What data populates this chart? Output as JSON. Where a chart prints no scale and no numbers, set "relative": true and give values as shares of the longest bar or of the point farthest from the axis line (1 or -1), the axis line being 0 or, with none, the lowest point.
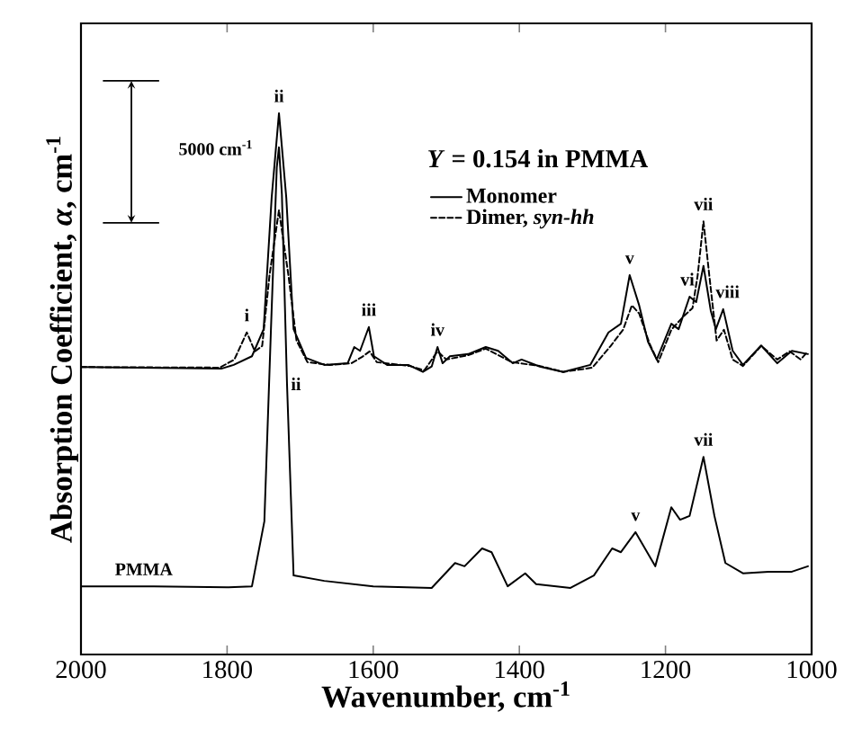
{
  "chart_data": {
    "type": "line",
    "relative": true,
    "xlabel": "Wavenumber, cm$^{-1}$",
    "ylabel": "Absorption Coefficient, *α*, cm$^{-1}$",
    "xlim": [
      2000,
      1000
    ],
    "xticks": [
      2000,
      1800,
      1600,
      1400,
      1200,
      1000
    ],
    "legend": "top right",
    "marker": "none",
    "grid": false,
    "series": [
      {
        "name": "Monomer",
        "color": "#000000",
        "line_style": "solid",
        "x": [
          2000,
          1808,
          1791,
          1766,
          1750,
          1739,
          1729,
          1719,
          1709,
          1692,
          1667,
          1635,
          1626,
          1618,
          1606,
          1599,
          1581,
          1552,
          1532,
          1520,
          1512,
          1505,
          1495,
          1470,
          1446,
          1429,
          1409,
          1397,
          1372,
          1340,
          1303,
          1278,
          1261,
          1249,
          1236,
          1224,
          1212,
          1192,
          1182,
          1167,
          1158,
          1148,
          1138,
          1131,
          1121,
          1108,
          1094,
          1069,
          1047,
          1027,
          1005
        ],
        "values": [
          0.531,
          0.528,
          0.535,
          0.551,
          0.601,
          0.844,
          1.0,
          0.844,
          0.601,
          0.548,
          0.535,
          0.538,
          0.568,
          0.561,
          0.605,
          0.551,
          0.535,
          0.535,
          0.522,
          0.532,
          0.568,
          0.538,
          0.551,
          0.555,
          0.568,
          0.561,
          0.538,
          0.545,
          0.532,
          0.522,
          0.535,
          0.595,
          0.611,
          0.701,
          0.645,
          0.578,
          0.545,
          0.611,
          0.601,
          0.661,
          0.651,
          0.718,
          0.635,
          0.601,
          0.638,
          0.561,
          0.535,
          0.571,
          0.538,
          0.561,
          0.555
        ]
      },
      {
        "name": "Dimer, *syn-hh*",
        "color": "#000000",
        "line_style": "dashed",
        "x": [
          2000,
          1810,
          1790,
          1773,
          1762,
          1752,
          1742,
          1729,
          1716,
          1705,
          1690,
          1660,
          1630,
          1615,
          1605,
          1595,
          1550,
          1530,
          1512,
          1500,
          1470,
          1446,
          1410,
          1372,
          1340,
          1300,
          1275,
          1258,
          1246,
          1236,
          1222,
          1210,
          1192,
          1175,
          1163,
          1156,
          1148,
          1140,
          1130,
          1120,
          1108,
          1094,
          1069,
          1047,
          1030,
          1015,
          1005
        ],
        "values": [
          0.531,
          0.53,
          0.545,
          0.595,
          0.56,
          0.57,
          0.7,
          0.821,
          0.7,
          0.58,
          0.54,
          0.535,
          0.538,
          0.55,
          0.56,
          0.54,
          0.533,
          0.525,
          0.56,
          0.545,
          0.553,
          0.565,
          0.54,
          0.533,
          0.522,
          0.53,
          0.57,
          0.6,
          0.645,
          0.63,
          0.575,
          0.54,
          0.6,
          0.625,
          0.64,
          0.7,
          0.8,
          0.7,
          0.58,
          0.6,
          0.545,
          0.533,
          0.57,
          0.545,
          0.56,
          0.545,
          0.56
        ]
      },
      {
        "color": "#000000",
        "line_style": "solid",
        "x": [
          2000,
          1900,
          1800,
          1766,
          1749,
          1740,
          1732,
          1729,
          1725,
          1718,
          1709,
          1667,
          1600,
          1520,
          1488,
          1475,
          1451,
          1438,
          1416,
          1392,
          1377,
          1330,
          1298,
          1273,
          1261,
          1241,
          1214,
          1192,
          1180,
          1167,
          1148,
          1133,
          1118,
          1094,
          1059,
          1027,
          1005
        ],
        "values": [
          0.126,
          0.126,
          0.124,
          0.126,
          0.246,
          0.6,
          0.9,
          0.937,
          0.85,
          0.5,
          0.146,
          0.136,
          0.126,
          0.123,
          0.169,
          0.163,
          0.196,
          0.189,
          0.126,
          0.15,
          0.13,
          0.123,
          0.146,
          0.196,
          0.189,
          0.226,
          0.163,
          0.272,
          0.249,
          0.256,
          0.365,
          0.256,
          0.169,
          0.15,
          0.153,
          0.153,
          0.163
        ]
      }
    ],
    "annotations": [
      "*Y* = 0.154 in PMMA",
      "5000 cm$^{-1}$",
      {
        "text": "i",
        "x": 1773,
        "y": 0.595
      },
      {
        "text": "ii",
        "x": 1729,
        "y": 1.0
      },
      {
        "text": "iii",
        "x": 1606,
        "y": 0.605
      },
      {
        "text": "iv",
        "x": 1512,
        "y": 0.568
      },
      {
        "text": "v",
        "x": 1249,
        "y": 0.701
      },
      {
        "text": "vi",
        "x": 1170,
        "y": 0.661
      },
      {
        "text": "vii",
        "x": 1148,
        "y": 0.8
      },
      {
        "text": "viii",
        "x": 1115,
        "y": 0.638
      },
      {
        "text": "PMMA",
        "x": 1914,
        "y": 0.126
      },
      {
        "text": "ii",
        "x": 1718,
        "y": 0.5
      },
      {
        "text": "v",
        "x": 1241,
        "y": 0.226
      },
      {
        "text": "vii",
        "x": 1148,
        "y": 0.365
      }
    ]
  }
}
